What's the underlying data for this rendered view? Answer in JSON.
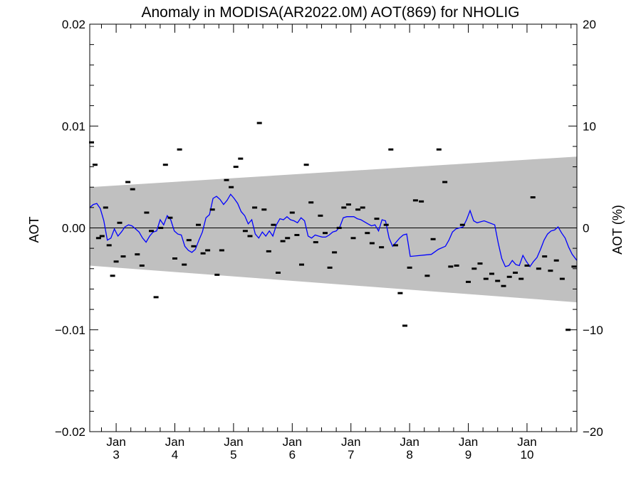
{
  "chart_data": {
    "type": "line",
    "title": "Anomaly in MODISA(AR2022.0M) AOT(869) for NHOLIG",
    "ylabel": "AOT",
    "ylabel_right": "AOT (%)",
    "ylim": [
      -0.02,
      0.02
    ],
    "ylim_right": [
      -20,
      20
    ],
    "y_ticks": [
      "0.02",
      "0.01",
      "0.00",
      "-0.01",
      "-0.02"
    ],
    "y_ticks_right": [
      "20",
      "10",
      "0",
      "-10",
      "-20"
    ],
    "x_ticks": [
      {
        "month": "Jan",
        "day": "3",
        "x": 3
      },
      {
        "month": "Jan",
        "day": "4",
        "x": 4
      },
      {
        "month": "Jan",
        "day": "5",
        "x": 5
      },
      {
        "month": "Jan",
        "day": "6",
        "x": 6
      },
      {
        "month": "Jan",
        "day": "7",
        "x": 7
      },
      {
        "month": "Jan",
        "day": "8",
        "x": 8
      },
      {
        "month": "Jan",
        "day": "9",
        "x": 9
      },
      {
        "month": "Jan",
        "day": "10",
        "x": 10
      }
    ],
    "xlim": [
      2.55,
      10.85
    ],
    "envelope": {
      "x": [
        2.55,
        10.85
      ],
      "upper": [
        0.004,
        0.007
      ],
      "lower": [
        -0.0037,
        -0.0073
      ]
    },
    "series": [
      {
        "kind": "mean-line",
        "color": "#0000ff",
        "x": [
          2.55,
          2.61,
          2.67,
          2.73,
          2.79,
          2.85,
          2.91,
          2.97,
          3.03,
          3.09,
          3.15,
          3.21,
          3.27,
          3.33,
          3.39,
          3.45,
          3.51,
          3.57,
          3.63,
          3.69,
          3.75,
          3.81,
          3.87,
          3.93,
          3.99,
          4.05,
          4.11,
          4.17,
          4.23,
          4.29,
          4.35,
          4.41,
          4.47,
          4.53,
          4.59,
          4.65,
          4.71,
          4.77,
          4.83,
          4.89,
          4.95,
          5.01,
          5.07,
          5.13,
          5.19,
          5.25,
          5.31,
          5.37,
          5.43,
          5.49,
          5.55,
          5.61,
          5.67,
          5.73,
          5.79,
          5.85,
          5.91,
          5.97,
          6.03,
          6.09,
          6.15,
          6.21,
          6.27,
          6.33,
          6.39,
          6.45,
          6.51,
          6.57,
          6.63,
          6.69,
          6.75,
          6.81,
          6.87,
          6.93,
          6.99,
          7.05,
          7.11,
          7.17,
          7.23,
          7.29,
          7.35,
          7.41,
          7.47,
          7.53,
          7.59,
          7.65,
          7.71,
          7.77,
          7.83,
          7.89,
          7.95,
          8.01,
          8.37,
          8.49,
          8.61,
          8.67,
          8.73,
          8.79,
          8.85,
          8.91,
          8.97,
          9.03,
          9.09,
          9.15,
          9.21,
          9.27,
          9.45,
          9.51,
          9.57,
          9.63,
          9.69,
          9.75,
          9.81,
          9.87,
          9.93,
          9.99,
          10.05,
          10.11,
          10.17,
          10.23,
          10.29,
          10.35,
          10.41,
          10.47,
          10.53,
          10.59,
          10.65,
          10.71,
          10.77,
          10.85
        ],
        "y": [
          0.002,
          0.0023,
          0.0024,
          0.0019,
          0.0007,
          -0.0012,
          -0.001,
          -0.0001,
          -0.0008,
          -0.0004,
          0.0001,
          0.0003,
          0.0002,
          -0.0001,
          -0.0004,
          -0.001,
          -0.0014,
          -0.0008,
          -0.0004,
          -0.0003,
          0.0008,
          0.0003,
          0.0012,
          0.0008,
          -0.0003,
          -0.0006,
          -0.0007,
          -0.0018,
          -0.0022,
          -0.0024,
          -0.0021,
          -0.0012,
          -0.0004,
          0.001,
          0.0013,
          0.0029,
          0.0031,
          0.0028,
          0.0023,
          0.0027,
          0.0033,
          0.0029,
          0.0024,
          0.0016,
          0.0012,
          0.0004,
          0.0008,
          -0.0006,
          -0.001,
          -0.0004,
          -0.0008,
          -0.0003,
          -0.0008,
          0.0003,
          0.0009,
          0.0008,
          0.0011,
          0.0008,
          0.0007,
          0.0005,
          0.001,
          0.0007,
          -0.0008,
          -0.001,
          -0.0007,
          -0.0008,
          -0.0009,
          -0.0009,
          -0.0007,
          -0.0004,
          -0.0003,
          0.0001,
          0.001,
          0.0011,
          0.0011,
          0.0011,
          0.0009,
          0.0008,
          0.0006,
          0.0004,
          0.0002,
          0.0003,
          -0.0003,
          0.0008,
          0.0007,
          -0.001,
          -0.0018,
          -0.0014,
          -0.001,
          -0.0007,
          -0.0006,
          -0.0028,
          -0.0026,
          -0.0021,
          -0.0018,
          -0.0012,
          -0.0004,
          -0.0001,
          0.0,
          0.0001,
          0.0008,
          0.0017,
          0.0007,
          0.0005,
          0.0006,
          0.0007,
          0.0003,
          -0.0015,
          -0.003,
          -0.0038,
          -0.0037,
          -0.0032,
          -0.0036,
          -0.0037,
          -0.0027,
          -0.0033,
          -0.0038,
          -0.0033,
          -0.0029,
          -0.0021,
          -0.0012,
          -0.0006,
          -0.0003,
          -0.0002,
          0.0001,
          -0.0005,
          -0.001,
          -0.0019,
          -0.0026,
          -0.0032
        ]
      },
      {
        "kind": "points",
        "color": "#000000",
        "x": [
          2.58,
          2.64,
          2.7,
          2.76,
          2.82,
          2.88,
          2.94,
          3.0,
          3.06,
          3.12,
          3.2,
          3.28,
          3.36,
          3.44,
          3.52,
          3.6,
          3.68,
          3.76,
          3.84,
          3.92,
          4.0,
          4.08,
          4.16,
          4.24,
          4.32,
          4.4,
          4.48,
          4.56,
          4.64,
          4.72,
          4.8,
          4.88,
          4.96,
          5.04,
          5.12,
          5.2,
          5.28,
          5.36,
          5.44,
          5.52,
          5.6,
          5.68,
          5.76,
          5.84,
          5.92,
          6.0,
          6.08,
          6.16,
          6.24,
          6.32,
          6.4,
          6.48,
          6.56,
          6.64,
          6.72,
          6.8,
          6.88,
          6.96,
          7.04,
          7.12,
          7.2,
          7.28,
          7.36,
          7.44,
          7.52,
          7.6,
          7.68,
          7.76,
          7.84,
          7.92,
          8.0,
          8.1,
          8.2,
          8.3,
          8.4,
          8.5,
          8.6,
          8.7,
          8.8,
          8.9,
          9.0,
          9.1,
          9.2,
          9.3,
          9.4,
          9.5,
          9.6,
          9.7,
          9.8,
          9.9,
          10.0,
          10.1,
          10.2,
          10.3,
          10.4,
          10.5,
          10.6,
          10.7,
          10.8
        ],
        "y": [
          0.0084,
          0.0062,
          -0.001,
          -0.0008,
          0.002,
          -0.0017,
          -0.0047,
          -0.0033,
          0.0005,
          -0.0028,
          0.0045,
          0.0038,
          -0.0026,
          -0.0037,
          0.0015,
          -0.0003,
          -0.0068,
          0.0,
          0.0062,
          0.001,
          -0.003,
          0.0077,
          -0.0036,
          -0.0012,
          -0.0018,
          0.0003,
          -0.0025,
          -0.0022,
          0.0018,
          -0.0046,
          -0.0022,
          0.0047,
          0.004,
          0.006,
          0.0068,
          -0.0003,
          -0.0008,
          0.002,
          0.0103,
          0.0018,
          -0.0023,
          0.0003,
          -0.0044,
          -0.0013,
          -0.001,
          0.0015,
          -0.0007,
          -0.0036,
          0.0062,
          0.0025,
          -0.0014,
          0.0012,
          -0.0005,
          -0.0039,
          -0.0024,
          0.0,
          0.002,
          0.0023,
          -0.001,
          0.0018,
          0.002,
          -0.0005,
          -0.0015,
          0.0009,
          -0.0019,
          0.0003,
          0.0077,
          -0.0017,
          -0.0064,
          -0.0096,
          -0.0039,
          0.0027,
          0.0026,
          -0.0047,
          -0.0011,
          0.0077,
          0.0045,
          -0.0038,
          -0.0037,
          0.0003,
          -0.0053,
          -0.004,
          -0.0035,
          -0.005,
          -0.0045,
          -0.0052,
          -0.0057,
          -0.0048,
          -0.0044,
          -0.005,
          -0.0037,
          0.003,
          -0.004,
          -0.0028,
          -0.0042,
          -0.0032,
          -0.005,
          -0.01,
          -0.0038
        ]
      }
    ],
    "grid": false,
    "legend": "none",
    "colors": {
      "envelope": "#c0c0c0",
      "mean_line": "#0000ff",
      "points": "#000000",
      "zero_line": "#000000"
    }
  }
}
